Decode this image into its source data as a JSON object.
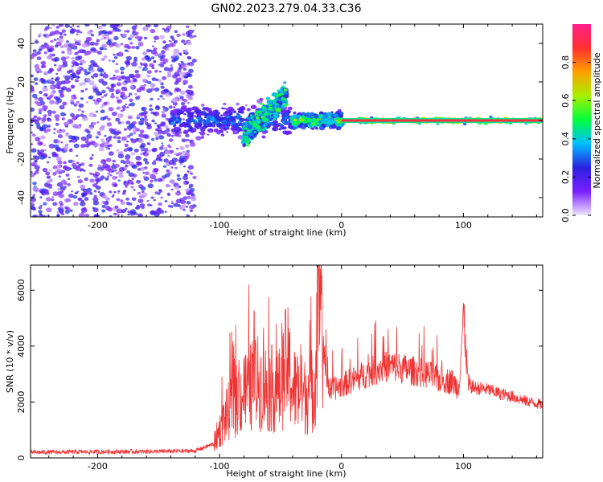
{
  "figure": {
    "title": "GN02.2023.279.04.33.C36"
  },
  "chart_data": [
    {
      "type": "heatmap",
      "title": "",
      "xlabel": "Height of straight line (km)",
      "ylabel": "Frequency (Hz)",
      "xlim": [
        -255,
        165
      ],
      "ylim": [
        -50,
        50
      ],
      "x_ticks": [
        -200,
        -100,
        0,
        100
      ],
      "y_ticks": [
        -40,
        -20,
        0,
        20,
        40
      ],
      "colorbar": {
        "label": "Normalized spectral amplitude",
        "range": [
          0,
          1
        ],
        "ticks": [
          0.0,
          0.2,
          0.4,
          0.6,
          0.8
        ],
        "colors": [
          "#f0e6ff",
          "#7a1fff",
          "#2b22e0",
          "#00bfff",
          "#00ff3c",
          "#a8f000",
          "#ffa000",
          "#ff3030",
          "#ff1e8c"
        ]
      },
      "bands": [
        {
          "x": [
            -255,
            -120
          ],
          "freq_center": 0,
          "freq_spread": 50,
          "amplitude": 0.2
        },
        {
          "x": [
            -140,
            -40
          ],
          "freq_center": 0,
          "freq_spread": 6,
          "amplitude": 0.35
        },
        {
          "x": [
            -80,
            -45
          ],
          "freq_center": 10,
          "freq_spread": 10,
          "amplitude": 0.4
        },
        {
          "x": [
            -40,
            0
          ],
          "freq_center": 0,
          "freq_spread": 3,
          "amplitude": 0.6
        },
        {
          "x": [
            0,
            165
          ],
          "freq_center": 0,
          "freq_spread": 1,
          "amplitude": 0.95
        }
      ]
    },
    {
      "type": "line",
      "title": "",
      "xlabel": "Height of straight line (km)",
      "ylabel": "SNR (10 * v/v)",
      "xlim": [
        -255,
        165
      ],
      "ylim": [
        0,
        6900
      ],
      "x_ticks": [
        -200,
        -100,
        0,
        100
      ],
      "y_ticks": [
        0,
        2000,
        4000,
        6000
      ],
      "line_color": "#f03232",
      "series": [
        {
          "x": [
            -255,
            -200,
            -150,
            -120,
            -105,
            -100,
            -90,
            -80,
            -70,
            -60,
            -50,
            -45,
            -40,
            -30,
            -22,
            -18,
            -15,
            -10,
            0,
            10,
            20,
            30,
            40,
            50,
            60,
            70,
            80,
            90,
            96,
            100,
            104,
            110,
            120,
            130,
            140,
            150,
            165
          ],
          "y": [
            200,
            220,
            230,
            250,
            500,
            1000,
            1900,
            2300,
            2700,
            2500,
            2400,
            3500,
            2500,
            2200,
            2500,
            6900,
            3800,
            2400,
            2600,
            2800,
            3000,
            3200,
            3300,
            3200,
            3100,
            3000,
            2800,
            2750,
            2500,
            5100,
            2600,
            2500,
            2450,
            2300,
            2200,
            2050,
            1900
          ]
        }
      ]
    }
  ]
}
